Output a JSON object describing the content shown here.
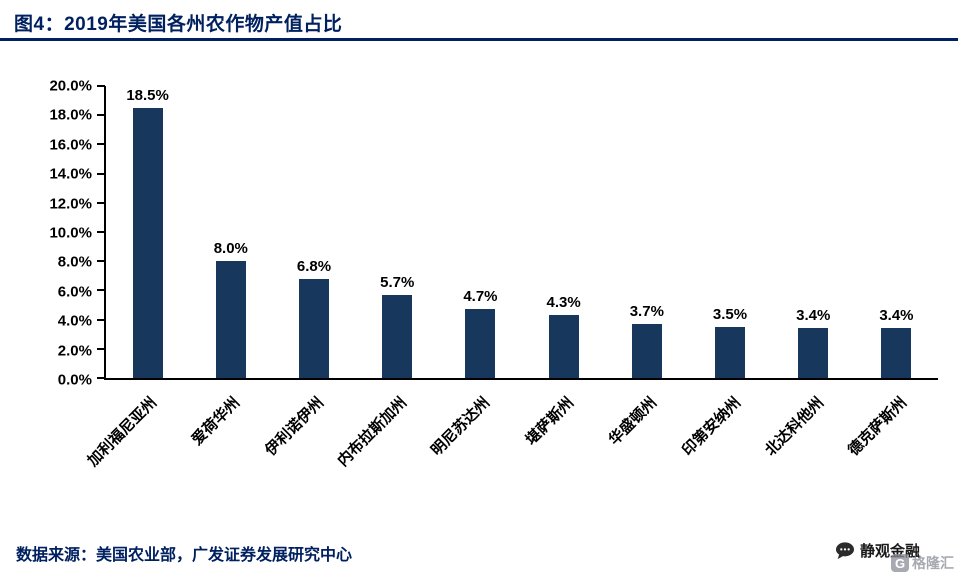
{
  "header": {
    "title": "图4：2019年美国各州农作物产值占比"
  },
  "chart_data": {
    "type": "bar",
    "title": "2019年美国各州农作物产值占比",
    "categories": [
      "加利福尼亚州",
      "爱荷华州",
      "伊利诺伊州",
      "内布拉斯加州",
      "明尼苏达州",
      "堪萨斯州",
      "华盛顿州",
      "印第安纳州",
      "北达科他州",
      "德克萨斯州"
    ],
    "values": [
      18.5,
      8.0,
      6.8,
      5.7,
      4.7,
      4.3,
      3.7,
      3.5,
      3.4,
      3.4
    ],
    "value_labels": [
      "18.5%",
      "8.0%",
      "6.8%",
      "5.7%",
      "4.7%",
      "4.3%",
      "3.7%",
      "3.5%",
      "3.4%",
      "3.4%"
    ],
    "xlabel": "",
    "ylabel": "",
    "ylim": [
      0,
      20
    ],
    "ytick_labels": [
      "0.0%",
      "2.0%",
      "4.0%",
      "6.0%",
      "8.0%",
      "10.0%",
      "12.0%",
      "14.0%",
      "16.0%",
      "18.0%",
      "20.0%"
    ],
    "grid": false,
    "legend_position": "none",
    "bar_color": "#17375D"
  },
  "footer": {
    "source": "数据来源：美国农业部，广发证券发展研究中心",
    "brand": "静观金融",
    "watermark_initial": "G",
    "watermark": "格隆汇"
  },
  "colors": {
    "accent": "#002060",
    "bar": "#17375D",
    "divider": "#002060",
    "text": "#000000",
    "watermark_gray": "#8a8f98"
  }
}
